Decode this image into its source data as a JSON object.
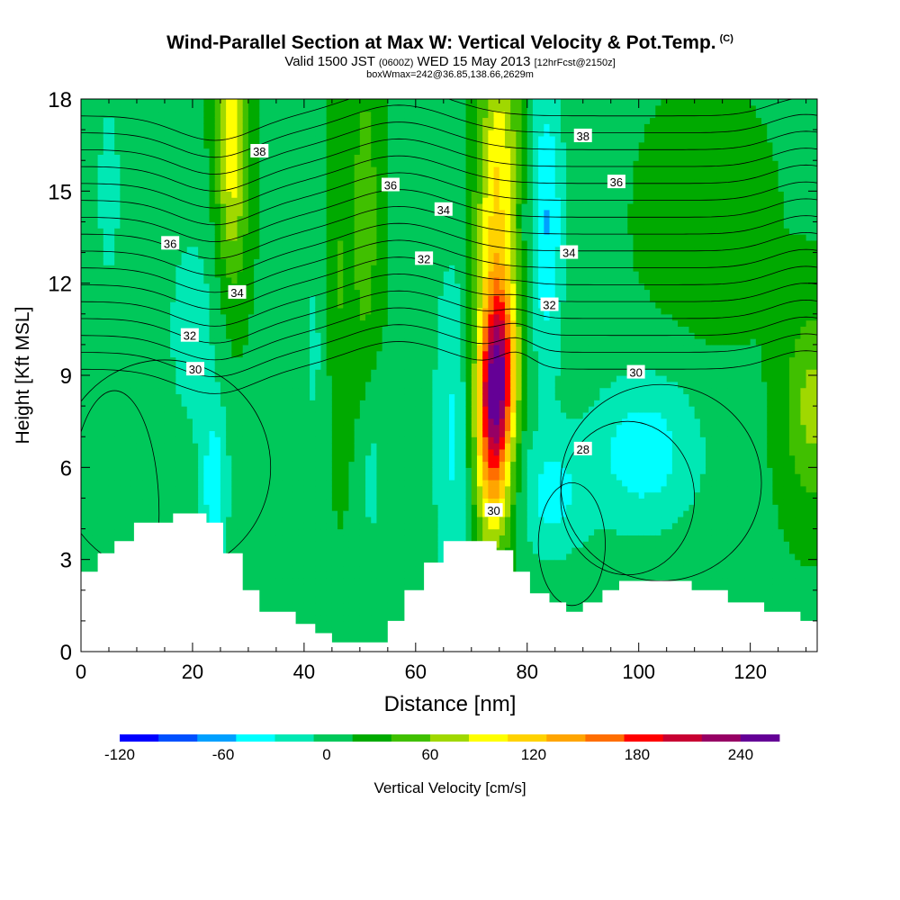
{
  "header": {
    "title_main": "Wind-Parallel Section at Max W: Vertical Velocity & Pot.Temp.",
    "title_copyright": "(C)",
    "subtitle_a": "Valid 1500 JST",
    "subtitle_b": "(0600Z)",
    "subtitle_c": "WED 15 May 2013",
    "subtitle_d": "[12hrFcst@2150z]",
    "info_line": "boxWmax=242@36.85,138.66,2629m"
  },
  "colors": {
    "background": "#ffffff",
    "terrain": "#ffffff",
    "contour": "#000000",
    "colorbar": [
      "#0000ff",
      "#0050ff",
      "#00a0ff",
      "#00ffff",
      "#00e8b4",
      "#00c85a",
      "#00aa00",
      "#40c000",
      "#a0d800",
      "#ffff00",
      "#ffd200",
      "#ffa500",
      "#ff6e00",
      "#ff0000",
      "#c80032",
      "#960064",
      "#640096"
    ]
  },
  "chart_data": {
    "type": "heatmap",
    "xlabel": "Distance [nm]",
    "ylabel": "Height [Kft MSL]",
    "xlim": [
      0,
      132
    ],
    "ylim": [
      0,
      18
    ],
    "x_ticks": [
      0,
      20,
      40,
      60,
      80,
      100,
      120
    ],
    "y_ticks": [
      0,
      3,
      6,
      9,
      12,
      15,
      18
    ],
    "colorbar": {
      "label": "Vertical Velocity [cm/s]",
      "min": -120,
      "step": 22.5,
      "tick_values": [
        -120,
        -60,
        0,
        60,
        120,
        180,
        240
      ]
    },
    "contour_field": "potential temperature",
    "contour_labels": [
      {
        "text": "38",
        "x": 32,
        "y": 16.3
      },
      {
        "text": "36",
        "x": 55.5,
        "y": 15.2
      },
      {
        "text": "34",
        "x": 65,
        "y": 14.4
      },
      {
        "text": "38",
        "x": 90,
        "y": 16.8
      },
      {
        "text": "36",
        "x": 96,
        "y": 15.3
      },
      {
        "text": "36",
        "x": 16,
        "y": 13.3
      },
      {
        "text": "34",
        "x": 87.5,
        "y": 13.0
      },
      {
        "text": "32",
        "x": 61.5,
        "y": 12.8
      },
      {
        "text": "34",
        "x": 28,
        "y": 11.7
      },
      {
        "text": "32",
        "x": 84,
        "y": 11.3
      },
      {
        "text": "32",
        "x": 19.5,
        "y": 10.3
      },
      {
        "text": "30",
        "x": 20.5,
        "y": 9.2
      },
      {
        "text": "30",
        "x": 99.5,
        "y": 9.1
      },
      {
        "text": "28",
        "x": 90,
        "y": 6.6
      },
      {
        "text": "30",
        "x": 74,
        "y": 4.6
      }
    ],
    "terrain_profile": [
      {
        "x": 0,
        "height": 2.6
      },
      {
        "x": 3,
        "height": 3.2
      },
      {
        "x": 6,
        "height": 3.6
      },
      {
        "x": 9.5,
        "height": 4.2
      },
      {
        "x": 16.5,
        "height": 4.5
      },
      {
        "x": 22.5,
        "height": 4.2
      },
      {
        "x": 25.5,
        "height": 3.2
      },
      {
        "x": 29,
        "height": 2.0
      },
      {
        "x": 32,
        "height": 1.3
      },
      {
        "x": 38.5,
        "height": 0.9
      },
      {
        "x": 42,
        "height": 0.6
      },
      {
        "x": 45,
        "height": 0.3
      },
      {
        "x": 55,
        "height": 1.0
      },
      {
        "x": 58,
        "height": 2.0
      },
      {
        "x": 61.5,
        "height": 2.9
      },
      {
        "x": 65,
        "height": 3.6
      },
      {
        "x": 74.5,
        "height": 3.3
      },
      {
        "x": 77.5,
        "height": 2.6
      },
      {
        "x": 80.5,
        "height": 1.9
      },
      {
        "x": 84,
        "height": 1.6
      },
      {
        "x": 84.5,
        "height": 1.6
      },
      {
        "x": 87,
        "height": 1.3
      },
      {
        "x": 90,
        "height": 1.6
      },
      {
        "x": 93.5,
        "height": 2.0
      },
      {
        "x": 96.5,
        "height": 2.3
      },
      {
        "x": 109.5,
        "height": 2.0
      },
      {
        "x": 116,
        "height": 1.6
      },
      {
        "x": 122.5,
        "height": 1.3
      },
      {
        "x": 129,
        "height": 1.0
      },
      {
        "x": 132,
        "height": 1.0
      }
    ],
    "w_max_location": {
      "x": 74.5,
      "height": 8.5,
      "value": 242
    }
  }
}
